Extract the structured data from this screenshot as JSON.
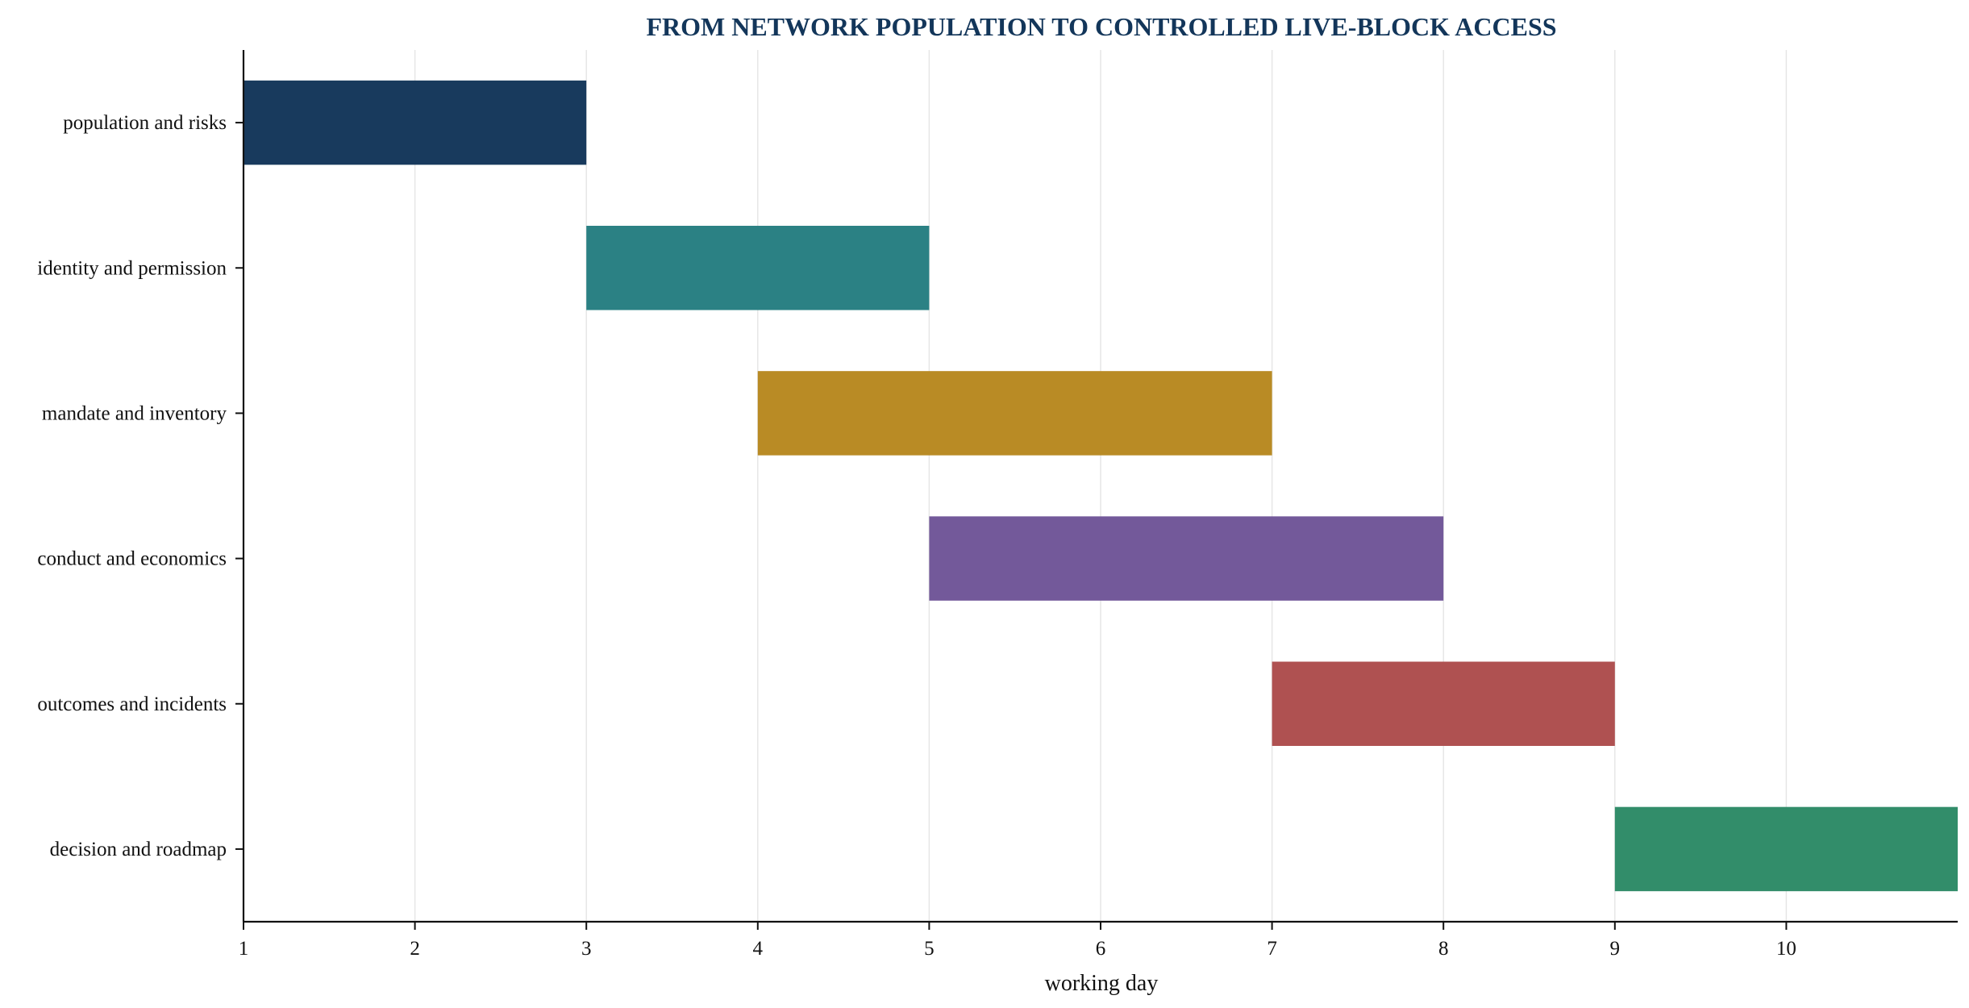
{
  "chart_data": {
    "type": "bar",
    "orientation": "horizontal-gantt",
    "title": "FROM NETWORK POPULATION TO CONTROLLED LIVE-BLOCK ACCESS",
    "xlabel": "working day",
    "ylabel": "",
    "xlim": [
      1,
      11
    ],
    "xticks": [
      1,
      2,
      3,
      4,
      5,
      6,
      7,
      8,
      9,
      10
    ],
    "grid": "vertical",
    "legend": "none",
    "tasks": [
      {
        "label": "population and risks",
        "start": 1,
        "end": 3,
        "color": "#13365A"
      },
      {
        "label": "identity and permission",
        "start": 3,
        "end": 5,
        "color": "#277E82"
      },
      {
        "label": "mandate and inventory",
        "start": 4,
        "end": 7,
        "color": "#B88921"
      },
      {
        "label": "conduct and economics",
        "start": 5,
        "end": 8,
        "color": "#705698"
      },
      {
        "label": "outcomes and incidents",
        "start": 7,
        "end": 9,
        "color": "#AD4E4E"
      },
      {
        "label": "decision and roadmap",
        "start": 9,
        "end": 11,
        "color": "#2E8B67"
      }
    ],
    "colors": {
      "title": "#13365A",
      "grid": "#E6E6E6",
      "axis": "#111111"
    }
  }
}
